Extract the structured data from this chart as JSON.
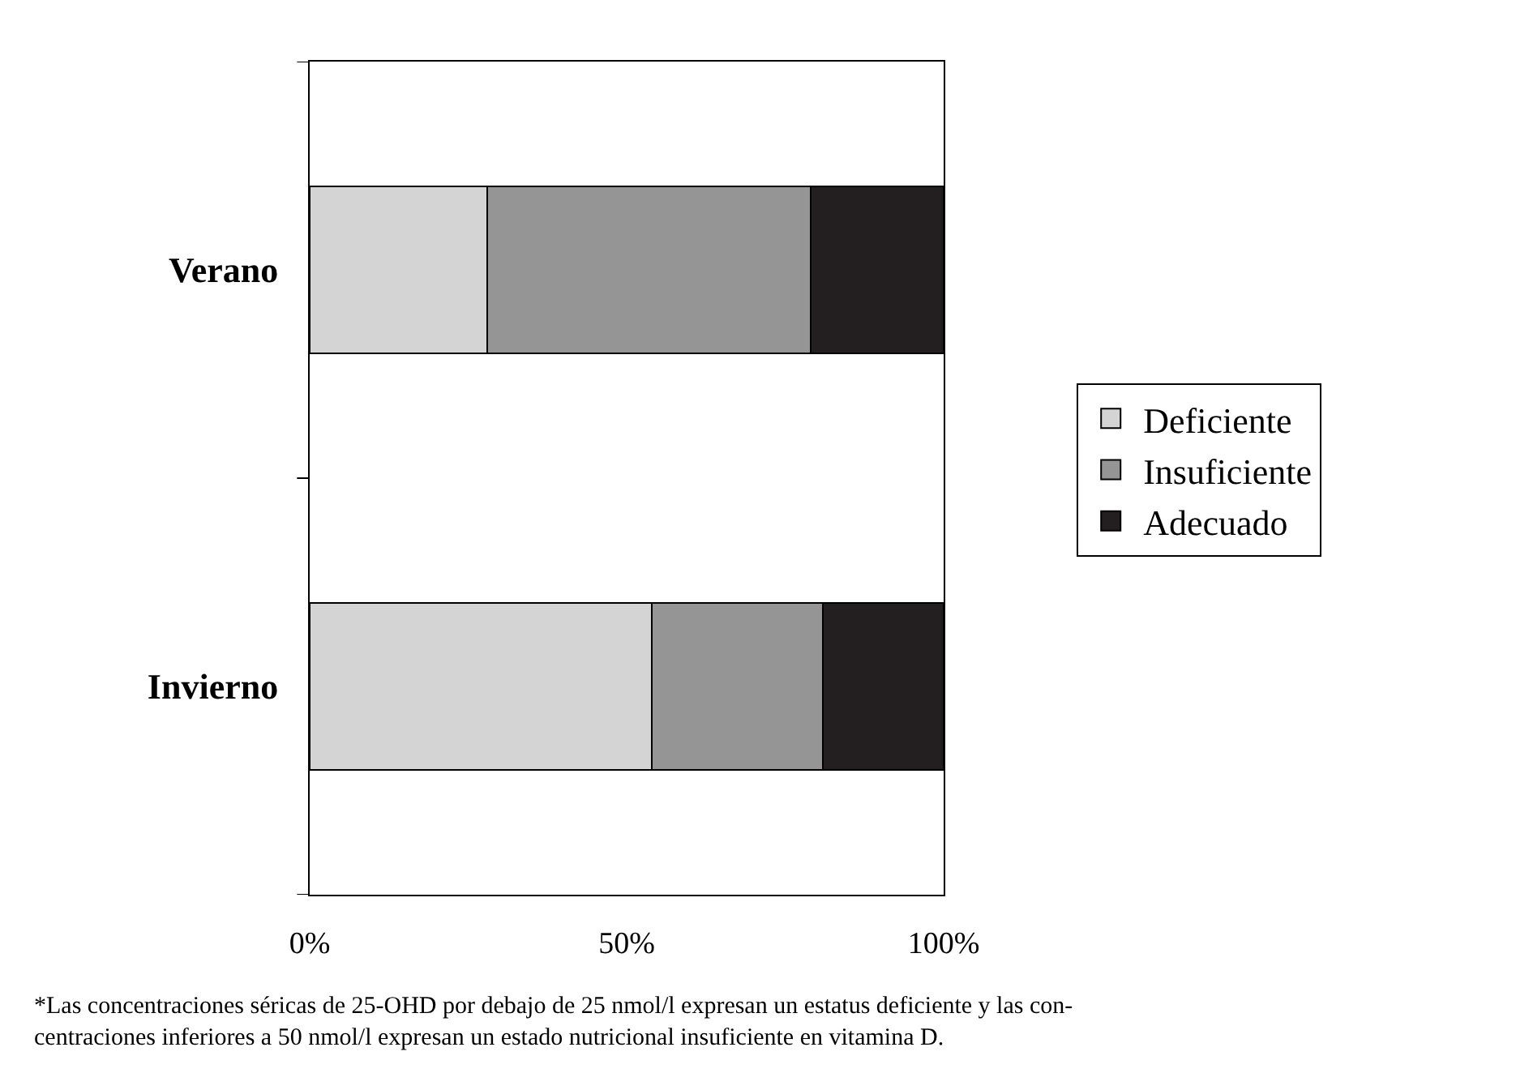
{
  "chart_data": {
    "type": "bar",
    "orientation": "horizontal",
    "stacked": true,
    "categories": [
      "Verano",
      "Invierno"
    ],
    "series": [
      {
        "name": "Deficiente",
        "color": "#d4d4d4",
        "values": [
          28,
          54
        ]
      },
      {
        "name": "Insuficiente",
        "color": "#959595",
        "values": [
          51,
          27
        ]
      },
      {
        "name": "Adecuado",
        "color": "#231f20",
        "values": [
          21,
          19
        ]
      }
    ],
    "xlim": [
      0,
      100
    ],
    "xticks": [
      {
        "value": 0,
        "label": "0%"
      },
      {
        "value": 50,
        "label": "50%"
      },
      {
        "value": 100,
        "label": "100%"
      }
    ],
    "grid": false,
    "legend": "right",
    "annotations": [
      "*Las concentraciones séricas de 25-OHD por debajo de 25 nmol/l expresan un estatus deficiente y las con-\ncentraciones inferiores a 50 nmol/l expresan un estado nutricional insuficiente en vitamina D."
    ]
  }
}
